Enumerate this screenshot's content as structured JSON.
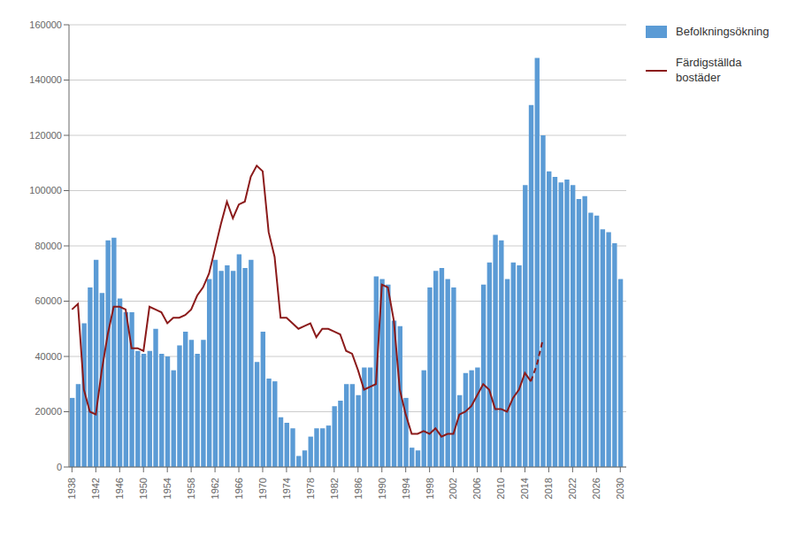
{
  "chart_data": {
    "type": "bar",
    "x": [
      1938,
      1939,
      1940,
      1941,
      1942,
      1943,
      1944,
      1945,
      1946,
      1947,
      1948,
      1949,
      1950,
      1951,
      1952,
      1953,
      1954,
      1955,
      1956,
      1957,
      1958,
      1959,
      1960,
      1961,
      1962,
      1963,
      1964,
      1965,
      1966,
      1967,
      1968,
      1969,
      1970,
      1971,
      1972,
      1973,
      1974,
      1975,
      1976,
      1977,
      1978,
      1979,
      1980,
      1981,
      1982,
      1983,
      1984,
      1985,
      1986,
      1987,
      1988,
      1989,
      1990,
      1991,
      1992,
      1993,
      1994,
      1995,
      1996,
      1997,
      1998,
      1999,
      2000,
      2001,
      2002,
      2003,
      2004,
      2005,
      2006,
      2007,
      2008,
      2009,
      2010,
      2011,
      2012,
      2013,
      2014,
      2015,
      2016,
      2017,
      2018,
      2019,
      2020,
      2021,
      2022,
      2023,
      2024,
      2025,
      2026,
      2027,
      2028,
      2029,
      2030
    ],
    "series": [
      {
        "name": "Befolkningsökning",
        "type": "bar",
        "color": "#5B9BD5",
        "values": [
          25000,
          30000,
          52000,
          65000,
          75000,
          63000,
          82000,
          83000,
          61000,
          56000,
          56000,
          42000,
          41000,
          42000,
          50000,
          41000,
          40000,
          35000,
          44000,
          49000,
          46000,
          41000,
          46000,
          68000,
          75000,
          71000,
          73000,
          71000,
          77000,
          72000,
          75000,
          38000,
          49000,
          32000,
          31000,
          18000,
          16000,
          14000,
          4000,
          6000,
          11000,
          14000,
          14000,
          15000,
          22000,
          24000,
          30000,
          30000,
          26000,
          36000,
          36000,
          69000,
          68000,
          66000,
          53000,
          51000,
          25000,
          7000,
          6000,
          35000,
          65000,
          71000,
          72000,
          68000,
          65000,
          26000,
          34000,
          35000,
          36000,
          66000,
          74000,
          84000,
          82000,
          68000,
          74000,
          73000,
          102000,
          131000,
          148000,
          120000,
          107000,
          105000,
          103000,
          104000,
          102000,
          97000,
          98000,
          92000,
          91000,
          86000,
          85000,
          81000,
          68000
        ]
      },
      {
        "name": "Färdigställda\nbostäder",
        "type": "line",
        "color": "#8B1A1A",
        "line_style": "solid",
        "values": [
          57000,
          59000,
          28000,
          20000,
          19000,
          35000,
          48000,
          58000,
          58000,
          57000,
          43000,
          43000,
          42000,
          58000,
          57000,
          56000,
          52000,
          54000,
          54000,
          55000,
          57000,
          62000,
          65000,
          70000,
          79000,
          88000,
          96000,
          90000,
          95000,
          96000,
          105000,
          109000,
          107000,
          85000,
          76000,
          54000,
          54000,
          52000,
          50000,
          51000,
          52000,
          47000,
          50000,
          50000,
          49000,
          48000,
          42000,
          41000,
          35000,
          28000,
          29000,
          30000,
          66000,
          65000,
          53000,
          28000,
          19000,
          12000,
          12000,
          13000,
          12000,
          14000,
          11000,
          12000,
          12000,
          19000,
          20000,
          22000,
          26000,
          30000,
          28000,
          21000,
          21000,
          20000,
          25000,
          28000,
          34000,
          31000,
          null,
          null,
          null,
          null,
          null,
          null,
          null,
          null,
          null,
          null,
          null,
          null,
          null,
          null,
          null
        ]
      },
      {
        "name": "Färdigställda\nbostäder",
        "type": "line",
        "color": "#8B1A1A",
        "line_style": "dashed",
        "values": [
          null,
          null,
          null,
          null,
          null,
          null,
          null,
          null,
          null,
          null,
          null,
          null,
          null,
          null,
          null,
          null,
          null,
          null,
          null,
          null,
          null,
          null,
          null,
          null,
          null,
          null,
          null,
          null,
          null,
          null,
          null,
          null,
          null,
          null,
          null,
          null,
          null,
          null,
          null,
          null,
          null,
          null,
          null,
          null,
          null,
          null,
          null,
          null,
          null,
          null,
          null,
          null,
          null,
          null,
          null,
          null,
          null,
          null,
          null,
          null,
          null,
          null,
          null,
          null,
          null,
          null,
          null,
          null,
          null,
          null,
          null,
          null,
          null,
          null,
          null,
          null,
          null,
          31000,
          37000,
          46000,
          null,
          null,
          null,
          null,
          null,
          null,
          null,
          null,
          null,
          null,
          null,
          null,
          null
        ]
      }
    ],
    "xlim": [
      1937.5,
      2031
    ],
    "xticks": [
      1938,
      1942,
      1946,
      1950,
      1954,
      1958,
      1962,
      1966,
      1970,
      1974,
      1978,
      1982,
      1986,
      1990,
      1994,
      1998,
      2002,
      2006,
      2010,
      2014,
      2018,
      2022,
      2026,
      2030
    ],
    "ylim": [
      0,
      160000
    ],
    "yticks": [
      0,
      20000,
      40000,
      60000,
      80000,
      100000,
      120000,
      140000,
      160000
    ],
    "grid": true,
    "legend": "right"
  }
}
